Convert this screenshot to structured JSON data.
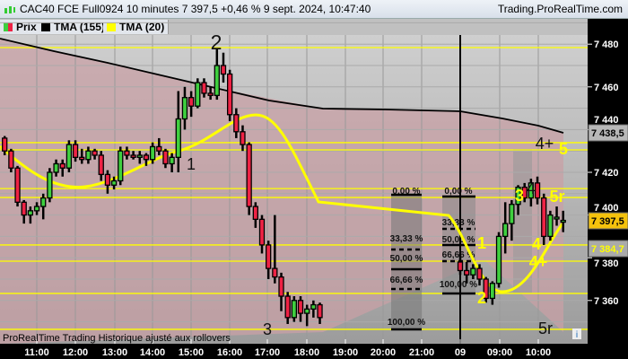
{
  "header": {
    "title": "CAC40 FCE Full0924 10 minutes 7 397,5 +0,46 % 9 sept. 2024, 10:47:40",
    "site": "Trading.ProRealTime.com"
  },
  "legend": [
    {
      "label": "Prix",
      "colors": [
        "#3fcf3f",
        "#ee2244"
      ]
    },
    {
      "label": "TMA (155)",
      "color": "#000000"
    },
    {
      "label": "TMA (20)",
      "color": "#ffff00"
    }
  ],
  "footer_note": "ProRealTime Trading  Historique ajusté aux rollovers",
  "info_icon": "i",
  "chart_data": {
    "type": "candlestick",
    "interval": "10 minutes",
    "colors": {
      "up": "#3fcf3f",
      "down": "#ee2244",
      "tma155": "#000000",
      "tma20": "#ffff00",
      "levels": "#ffff00"
    },
    "ylim": [
      7340,
      7490
    ],
    "y_ticks": [
      "7 480",
      "7 460",
      "7 440",
      "7 420",
      "7 400",
      "7 380",
      "7 360"
    ],
    "x_ticks": [
      "11:00",
      "12:00",
      "13:00",
      "14:00",
      "15:00",
      "16:00",
      "17:00",
      "18:00",
      "19:00",
      "20:00",
      "21:00",
      "09",
      "09:00",
      "10:00"
    ],
    "sessions": [
      {
        "start": "10:10",
        "candles": [
          [
            7436,
            7437,
            7428,
            7430
          ],
          [
            7430,
            7431,
            7420,
            7422
          ],
          [
            7422,
            7423,
            7404,
            7406
          ],
          [
            7406,
            7407,
            7396,
            7400
          ],
          [
            7400,
            7404,
            7396,
            7402
          ],
          [
            7402,
            7406,
            7400,
            7404
          ],
          [
            7404,
            7410,
            7398,
            7408
          ],
          [
            7408,
            7422,
            7406,
            7420
          ],
          [
            7420,
            7426,
            7418,
            7424
          ],
          [
            7424,
            7426,
            7418,
            7422
          ],
          [
            7422,
            7435,
            7420,
            7433
          ],
          [
            7433,
            7435,
            7425,
            7427
          ],
          [
            7427,
            7431,
            7424,
            7426
          ],
          [
            7426,
            7432,
            7424,
            7430
          ],
          [
            7430,
            7431,
            7426,
            7428
          ],
          [
            7428,
            7430,
            7416,
            7419
          ],
          [
            7419,
            7421,
            7410,
            7414
          ],
          [
            7414,
            7418,
            7412,
            7416
          ],
          [
            7416,
            7432,
            7414,
            7430
          ],
          [
            7430,
            7432,
            7426,
            7428
          ],
          [
            7428,
            7430,
            7426,
            7427
          ],
          [
            7427,
            7430,
            7424,
            7428
          ],
          [
            7428,
            7429,
            7423,
            7426
          ],
          [
            7426,
            7434,
            7424,
            7432
          ],
          [
            7432,
            7436,
            7428,
            7430
          ],
          [
            7430,
            7431,
            7422,
            7424
          ],
          [
            7424,
            7429,
            7420,
            7427
          ],
          [
            7427,
            7458,
            7420,
            7445
          ],
          [
            7445,
            7460,
            7440,
            7455
          ],
          [
            7455,
            7458,
            7446,
            7451
          ],
          [
            7451,
            7464,
            7450,
            7462
          ],
          [
            7462,
            7464,
            7455,
            7457
          ],
          [
            7457,
            7460,
            7454,
            7456
          ],
          [
            7456,
            7478,
            7454,
            7470
          ],
          [
            7470,
            7476,
            7462,
            7466
          ],
          [
            7466,
            7468,
            7444,
            7447
          ],
          [
            7447,
            7450,
            7436,
            7439
          ],
          [
            7439,
            7442,
            7430,
            7433
          ],
          [
            7433,
            7434,
            7400,
            7404
          ],
          [
            7404,
            7406,
            7394,
            7398
          ],
          [
            7398,
            7400,
            7382,
            7386
          ],
          [
            7386,
            7388,
            7370,
            7375
          ],
          [
            7375,
            7400,
            7368,
            7371
          ],
          [
            7371,
            7373,
            7355,
            7362
          ],
          [
            7362,
            7364,
            7349,
            7352
          ],
          [
            7352,
            7362,
            7350,
            7360
          ],
          [
            7360,
            7362,
            7350,
            7354
          ],
          [
            7354,
            7358,
            7348,
            7356
          ],
          [
            7356,
            7360,
            7352,
            7358
          ],
          [
            7358,
            7359,
            7349,
            7352
          ]
        ]
      },
      {
        "start": "08:00",
        "candles": [
          [
            7378,
            7382,
            7372,
            7374
          ],
          [
            7374,
            7378,
            7368,
            7372
          ],
          [
            7372,
            7377,
            7370,
            7375
          ],
          [
            7375,
            7377,
            7367,
            7370
          ],
          [
            7370,
            7371,
            7359,
            7361
          ],
          [
            7361,
            7369,
            7358,
            7368
          ],
          [
            7368,
            7392,
            7366,
            7390
          ],
          [
            7390,
            7406,
            7382,
            7396
          ],
          [
            7396,
            7407,
            7388,
            7405
          ],
          [
            7405,
            7414,
            7400,
            7413
          ],
          [
            7413,
            7415,
            7406,
            7408
          ],
          [
            7408,
            7417,
            7404,
            7415
          ],
          [
            7415,
            7418,
            7405,
            7408
          ],
          [
            7408,
            7410,
            7386,
            7390
          ],
          [
            7390,
            7402,
            7388,
            7400
          ],
          [
            7399,
            7404,
            7395,
            7399
          ],
          [
            7397,
            7402,
            7392,
            7397.5
          ]
        ]
      }
    ],
    "levels": [
      7478.4,
      7433.9,
      7430.5,
      7412.4,
      7408.2,
      7386,
      7378.4,
      7363.3,
      7346.5
    ],
    "price_labels": {
      "tma155": "7 438,5",
      "last": "7 397,5",
      "tma20": "7 384,7"
    },
    "wave_labels_black": [
      "2",
      "1",
      "3",
      "4",
      "4+",
      "5r"
    ],
    "wave_labels_yellow": [
      "5",
      "3",
      "5r",
      "1",
      "4",
      "4+",
      "2"
    ],
    "fib_boxes": [
      {
        "labels": [
          "0,00 %",
          "33,33 %",
          "50,00 %",
          "66,66 %",
          "100,00 %"
        ]
      },
      {
        "labels": [
          "0,00 %",
          "33,33 %",
          "50,00 %",
          "66,66 %",
          "100,00 %"
        ]
      }
    ]
  }
}
